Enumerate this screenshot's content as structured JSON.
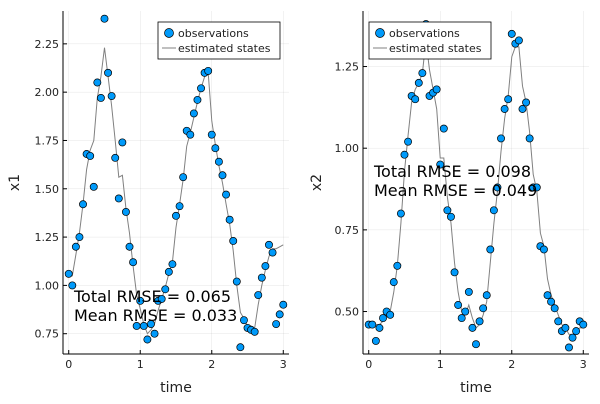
{
  "chart_data": [
    {
      "type": "scatter",
      "xlabel": "time",
      "ylabel": "x1",
      "xlim": [
        -0.08,
        3.08
      ],
      "ylim": [
        0.645,
        2.42
      ],
      "xticks": [
        0,
        1,
        2,
        3
      ],
      "xtick_labels": [
        "0",
        "1",
        "2",
        "3"
      ],
      "yticks": [
        0.75,
        1.0,
        1.25,
        1.5,
        1.75,
        2.0,
        2.25
      ],
      "ytick_labels": [
        "0.75",
        "1.00",
        "1.25",
        "1.50",
        "1.75",
        "2.00",
        "2.25"
      ],
      "grid": true,
      "legend_position": "top-right",
      "series": [
        {
          "name": "observations",
          "kind": "scatter",
          "color": "#009AFA",
          "x": [
            0.0,
            0.05,
            0.1,
            0.15,
            0.2,
            0.25,
            0.3,
            0.35,
            0.4,
            0.45,
            0.5,
            0.55,
            0.6,
            0.65,
            0.7,
            0.75,
            0.8,
            0.85,
            0.9,
            0.95,
            1.0,
            1.05,
            1.1,
            1.15,
            1.2,
            1.25,
            1.3,
            1.35,
            1.4,
            1.45,
            1.5,
            1.55,
            1.6,
            1.65,
            1.7,
            1.75,
            1.8,
            1.85,
            1.9,
            1.95,
            2.0,
            2.05,
            2.1,
            2.15,
            2.2,
            2.25,
            2.3,
            2.35,
            2.4,
            2.45,
            2.5,
            2.55,
            2.6,
            2.65,
            2.7,
            2.75,
            2.8,
            2.85,
            2.9,
            2.95,
            3.0
          ],
          "y": [
            1.06,
            1.0,
            1.2,
            1.25,
            1.42,
            1.68,
            1.67,
            1.51,
            2.05,
            1.97,
            2.38,
            2.1,
            1.98,
            1.66,
            1.45,
            1.74,
            1.38,
            1.2,
            1.12,
            0.79,
            0.92,
            0.79,
            0.72,
            0.8,
            0.75,
            0.92,
            0.93,
            0.98,
            1.07,
            1.11,
            1.36,
            1.41,
            1.56,
            1.8,
            1.78,
            1.89,
            1.96,
            2.02,
            2.1,
            2.11,
            1.78,
            1.71,
            1.64,
            1.57,
            1.47,
            1.34,
            1.23,
            1.02,
            0.68,
            0.82,
            0.78,
            0.77,
            0.76,
            0.95,
            1.04,
            1.1,
            1.21,
            1.17,
            0.8,
            0.85,
            0.9
          ]
        },
        {
          "name": "estimated states",
          "kind": "line",
          "color": "#808080",
          "x": [
            0.0,
            0.05,
            0.1,
            0.15,
            0.2,
            0.25,
            0.3,
            0.35,
            0.4,
            0.45,
            0.5,
            0.55,
            0.6,
            0.65,
            0.7,
            0.75,
            0.8,
            0.85,
            0.9,
            0.95,
            1.0,
            1.05,
            1.1,
            1.15,
            1.2,
            1.25,
            1.3,
            1.35,
            1.4,
            1.45,
            1.5,
            1.55,
            1.6,
            1.65,
            1.7,
            1.75,
            1.8,
            1.85,
            1.9,
            1.95,
            2.0,
            2.05,
            2.1,
            2.15,
            2.2,
            2.25,
            2.3,
            2.35,
            2.4,
            2.45,
            2.5,
            2.55,
            2.6,
            2.65,
            2.7,
            2.75,
            2.8,
            2.85,
            2.9,
            2.95,
            3.0
          ],
          "y": [
            1.06,
            1.05,
            1.16,
            1.27,
            1.42,
            1.6,
            1.7,
            1.75,
            1.97,
            2.08,
            2.23,
            2.08,
            1.93,
            1.75,
            1.56,
            1.57,
            1.4,
            1.27,
            1.1,
            0.95,
            0.88,
            0.8,
            0.75,
            0.77,
            0.8,
            0.87,
            0.93,
            0.99,
            1.06,
            1.12,
            1.3,
            1.42,
            1.55,
            1.72,
            1.79,
            1.87,
            1.95,
            2.02,
            2.08,
            2.1,
            1.85,
            1.73,
            1.62,
            1.53,
            1.42,
            1.32,
            1.18,
            1.0,
            0.86,
            0.83,
            0.79,
            0.79,
            0.78,
            0.9,
            1.0,
            1.08,
            1.15,
            1.19,
            1.19,
            1.2,
            1.21
          ]
        }
      ],
      "annotations": [
        "Total RMSE = 0.065",
        "Mean RMSE = 0.033"
      ]
    },
    {
      "type": "scatter",
      "xlabel": "time",
      "ylabel": "x2",
      "xlim": [
        -0.08,
        3.08
      ],
      "ylim": [
        0.37,
        1.42
      ],
      "xticks": [
        0,
        1,
        2,
        3
      ],
      "xtick_labels": [
        "0",
        "1",
        "2",
        "3"
      ],
      "yticks": [
        0.5,
        0.75,
        1.0,
        1.25
      ],
      "ytick_labels": [
        "0.50",
        "0.75",
        "1.00",
        "1.25"
      ],
      "grid": true,
      "legend_position": "top-right",
      "series": [
        {
          "name": "observations",
          "kind": "scatter",
          "color": "#009AFA",
          "x": [
            0.0,
            0.05,
            0.1,
            0.15,
            0.2,
            0.25,
            0.3,
            0.35,
            0.4,
            0.45,
            0.5,
            0.55,
            0.6,
            0.65,
            0.7,
            0.75,
            0.8,
            0.85,
            0.9,
            0.95,
            1.0,
            1.05,
            1.1,
            1.15,
            1.2,
            1.25,
            1.3,
            1.35,
            1.4,
            1.45,
            1.5,
            1.55,
            1.6,
            1.65,
            1.7,
            1.75,
            1.8,
            1.85,
            1.9,
            1.95,
            2.0,
            2.05,
            2.1,
            2.15,
            2.2,
            2.25,
            2.3,
            2.35,
            2.4,
            2.45,
            2.5,
            2.55,
            2.6,
            2.65,
            2.7,
            2.75,
            2.8,
            2.85,
            2.9,
            2.95,
            3.0
          ],
          "y": [
            0.46,
            0.46,
            0.41,
            0.45,
            0.48,
            0.5,
            0.49,
            0.59,
            0.64,
            0.8,
            0.98,
            1.02,
            1.16,
            1.15,
            1.2,
            1.23,
            1.38,
            1.16,
            1.17,
            1.18,
            0.95,
            1.06,
            0.81,
            0.79,
            0.62,
            0.52,
            0.48,
            0.5,
            0.56,
            0.45,
            0.4,
            0.47,
            0.51,
            0.55,
            0.69,
            0.81,
            0.88,
            1.03,
            1.12,
            1.15,
            1.35,
            1.32,
            1.33,
            1.12,
            1.14,
            1.03,
            0.88,
            0.88,
            0.7,
            0.69,
            0.55,
            0.53,
            0.51,
            0.47,
            0.44,
            0.45,
            0.39,
            0.42,
            0.44,
            0.47,
            0.46
          ]
        },
        {
          "name": "estimated states",
          "kind": "line",
          "color": "#808080",
          "x": [
            0.0,
            0.05,
            0.1,
            0.15,
            0.2,
            0.25,
            0.3,
            0.35,
            0.4,
            0.45,
            0.5,
            0.55,
            0.6,
            0.65,
            0.7,
            0.75,
            0.8,
            0.85,
            0.9,
            0.95,
            1.0,
            1.05,
            1.1,
            1.15,
            1.2,
            1.25,
            1.3,
            1.35,
            1.4,
            1.45,
            1.5,
            1.55,
            1.6,
            1.65,
            1.7,
            1.75,
            1.8,
            1.85,
            1.9,
            1.95,
            2.0,
            2.05,
            2.1,
            2.15,
            2.2,
            2.25,
            2.3,
            2.35,
            2.4,
            2.45,
            2.5,
            2.55,
            2.6,
            2.65,
            2.7,
            2.75,
            2.8,
            2.85,
            2.9,
            2.95,
            3.0
          ],
          "y": [
            0.46,
            0.46,
            0.46,
            0.46,
            0.47,
            0.49,
            0.5,
            0.56,
            0.64,
            0.77,
            0.93,
            1.04,
            1.14,
            1.18,
            1.2,
            1.23,
            1.33,
            1.24,
            1.18,
            1.12,
            0.97,
            0.97,
            0.85,
            0.77,
            0.65,
            0.56,
            0.5,
            0.49,
            0.52,
            0.48,
            0.45,
            0.46,
            0.49,
            0.53,
            0.65,
            0.77,
            0.87,
            0.99,
            1.09,
            1.16,
            1.28,
            1.31,
            1.31,
            1.19,
            1.14,
            1.05,
            0.92,
            0.87,
            0.74,
            0.7,
            0.6,
            0.55,
            0.52,
            0.49,
            0.46,
            0.45,
            0.43,
            0.43,
            0.44,
            0.45,
            0.45
          ]
        }
      ],
      "annotations": [
        "Total RMSE = 0.098",
        "Mean RMSE = 0.049"
      ]
    }
  ]
}
